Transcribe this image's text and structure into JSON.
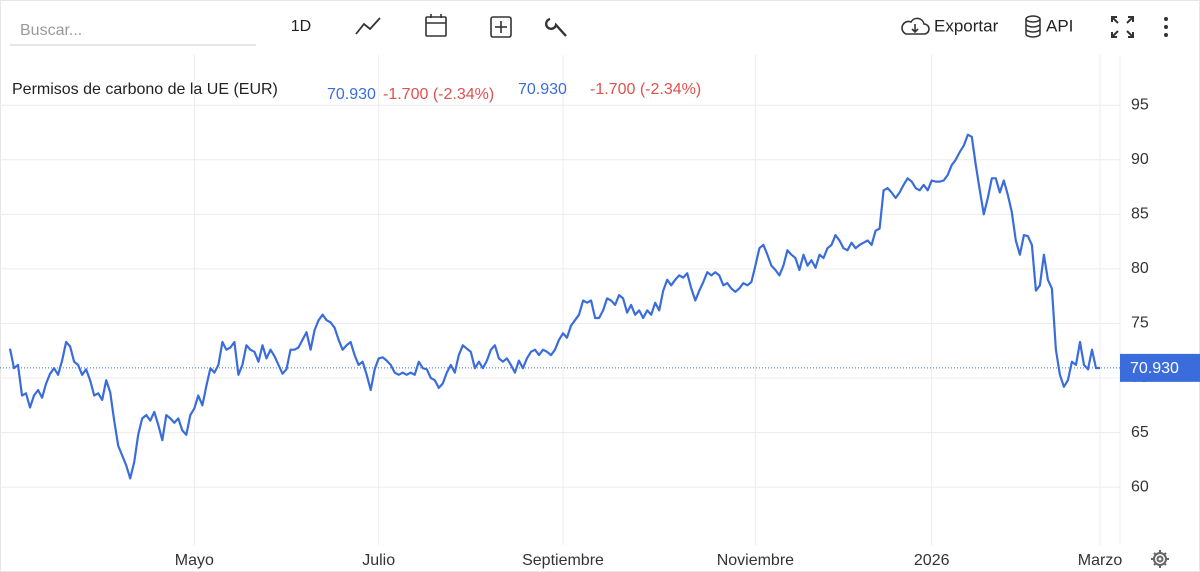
{
  "toolbar": {
    "search": "Buscar...",
    "interval": "1D",
    "export": "Exportar",
    "api": "API"
  },
  "chart_data": {
    "type": "line",
    "title": "Permisos de carbono de la UE (EUR)",
    "price": "70.930",
    "change": "-1.700 (-2.34%)",
    "color": "#3a6ddb",
    "change_color": "#e0504d",
    "grid": true,
    "ylim": [
      54.7,
      99.6
    ],
    "yticks": [
      60,
      65,
      70,
      75,
      80,
      85,
      90,
      95
    ],
    "categories": [
      null,
      null,
      null,
      null,
      null,
      null,
      null,
      null,
      null,
      null,
      null,
      null,
      null,
      null,
      null,
      null,
      null,
      null,
      null,
      null,
      null,
      null,
      null,
      null,
      null,
      null,
      null,
      null,
      null,
      null,
      null,
      null,
      null,
      null,
      null,
      null,
      null,
      null,
      null,
      null,
      null,
      null,
      null,
      null,
      null,
      null,
      "Mayo",
      null,
      null,
      null,
      null,
      null,
      null,
      null,
      null,
      null,
      null,
      null,
      null,
      null,
      null,
      null,
      null,
      null,
      null,
      null,
      null,
      null,
      null,
      null,
      null,
      null,
      null,
      null,
      null,
      null,
      null,
      null,
      null,
      null,
      null,
      null,
      null,
      null,
      null,
      null,
      null,
      null,
      null,
      null,
      null,
      null,
      "Julio",
      null,
      null,
      null,
      null,
      null,
      null,
      null,
      null,
      null,
      null,
      null,
      null,
      null,
      null,
      null,
      null,
      null,
      null,
      null,
      null,
      null,
      null,
      null,
      null,
      null,
      null,
      null,
      null,
      null,
      null,
      null,
      null,
      null,
      null,
      null,
      null,
      null,
      null,
      null,
      null,
      null,
      null,
      null,
      null,
      null,
      "Septiembre",
      null,
      null,
      null,
      null,
      null,
      null,
      null,
      null,
      null,
      null,
      null,
      null,
      null,
      null,
      null,
      null,
      null,
      null,
      null,
      null,
      null,
      null,
      null,
      null,
      null,
      null,
      null,
      null,
      null,
      null,
      null,
      null,
      null,
      null,
      null,
      null,
      null,
      null,
      null,
      null,
      null,
      null,
      null,
      null,
      null,
      null,
      null,
      "Noviembre",
      null,
      null,
      null,
      null,
      null,
      null,
      null,
      null,
      null,
      null,
      null,
      null,
      null,
      null,
      null,
      null,
      null,
      null,
      null,
      null,
      null,
      null,
      null,
      null,
      null,
      null,
      null,
      null,
      null,
      null,
      null,
      null,
      null,
      null,
      null,
      null,
      null,
      null,
      null,
      null,
      null,
      null,
      null,
      "2026",
      null,
      null,
      null,
      null,
      null,
      null,
      null,
      null,
      null,
      null,
      null,
      null,
      null,
      null,
      null,
      null,
      null,
      null,
      null,
      null,
      null,
      null,
      null,
      null,
      null,
      null,
      null,
      null,
      null,
      null,
      null,
      null,
      null,
      null,
      null,
      null,
      null,
      null,
      null,
      null,
      null,
      "Marzo"
    ],
    "values": [
      72.7,
      70.9,
      71.2,
      68.4,
      68.6,
      67.3,
      68.4,
      68.9,
      68.2,
      69.5,
      70.4,
      70.9,
      70.3,
      71.6,
      73.3,
      72.9,
      71.5,
      71.2,
      70.3,
      70.8,
      69.8,
      68.4,
      68.6,
      68.0,
      69.8,
      68.7,
      66.1,
      63.8,
      62.9,
      62.0,
      60.8,
      62.3,
      64.8,
      66.3,
      66.6,
      66.1,
      66.9,
      65.7,
      64.3,
      66.6,
      66.3,
      65.9,
      66.3,
      65.2,
      64.8,
      66.6,
      67.2,
      68.4,
      67.5,
      69.3,
      70.9,
      70.5,
      71.2,
      73.3,
      72.6,
      72.8,
      73.3,
      70.3,
      71.2,
      73.0,
      72.6,
      72.4,
      71.5,
      73.0,
      71.8,
      72.6,
      72.0,
      71.2,
      70.4,
      70.8,
      72.6,
      72.6,
      72.8,
      73.5,
      74.2,
      72.6,
      74.4,
      75.3,
      75.8,
      75.3,
      75.1,
      74.6,
      73.5,
      72.6,
      73.0,
      73.3,
      72.1,
      71.2,
      71.5,
      70.3,
      68.9,
      70.8,
      71.8,
      71.9,
      71.6,
      71.2,
      70.5,
      70.3,
      70.5,
      70.3,
      70.5,
      70.3,
      71.5,
      70.9,
      70.8,
      70.0,
      69.8,
      69.1,
      69.5,
      70.5,
      71.2,
      70.5,
      72.1,
      73.0,
      72.7,
      72.4,
      70.9,
      71.5,
      70.9,
      71.6,
      72.6,
      73.0,
      71.8,
      71.5,
      71.8,
      71.2,
      70.5,
      71.6,
      70.9,
      71.8,
      72.4,
      72.6,
      72.1,
      72.6,
      72.4,
      72.1,
      72.6,
      73.5,
      74.1,
      73.7,
      74.8,
      75.3,
      75.8,
      77.1,
      76.9,
      77.1,
      75.5,
      75.5,
      76.2,
      77.3,
      77.1,
      76.7,
      77.6,
      77.3,
      76.0,
      76.7,
      75.8,
      76.2,
      75.5,
      76.2,
      75.8,
      76.9,
      76.2,
      78.0,
      79.0,
      78.5,
      79.0,
      79.4,
      79.2,
      79.6,
      78.2,
      77.1,
      78.0,
      78.8,
      79.7,
      79.4,
      79.7,
      79.4,
      78.5,
      78.7,
      78.2,
      77.9,
      78.2,
      78.7,
      78.5,
      78.8,
      80.3,
      81.9,
      82.2,
      81.3,
      80.3,
      79.9,
      79.4,
      80.3,
      81.7,
      81.3,
      81.0,
      79.9,
      81.3,
      80.3,
      80.8,
      80.1,
      81.3,
      81.0,
      81.9,
      82.2,
      83.1,
      82.6,
      81.9,
      81.7,
      82.4,
      81.9,
      82.2,
      82.4,
      82.6,
      82.2,
      83.5,
      83.7,
      87.2,
      87.4,
      87.0,
      86.5,
      87.0,
      87.7,
      88.3,
      88.0,
      87.4,
      87.2,
      87.7,
      87.2,
      88.1,
      88.0,
      88.0,
      88.1,
      88.6,
      89.5,
      90.0,
      90.7,
      91.3,
      92.3,
      92.1,
      89.5,
      87.2,
      85.0,
      86.5,
      88.3,
      88.3,
      87.0,
      88.1,
      86.8,
      85.2,
      82.6,
      81.3,
      83.1,
      83.0,
      82.2,
      78.0,
      78.5,
      81.3,
      79.0,
      78.2,
      72.6,
      70.3,
      69.2,
      69.8,
      71.5,
      71.2,
      73.3,
      71.2,
      70.8,
      72.6,
      70.9,
      70.93
    ]
  }
}
